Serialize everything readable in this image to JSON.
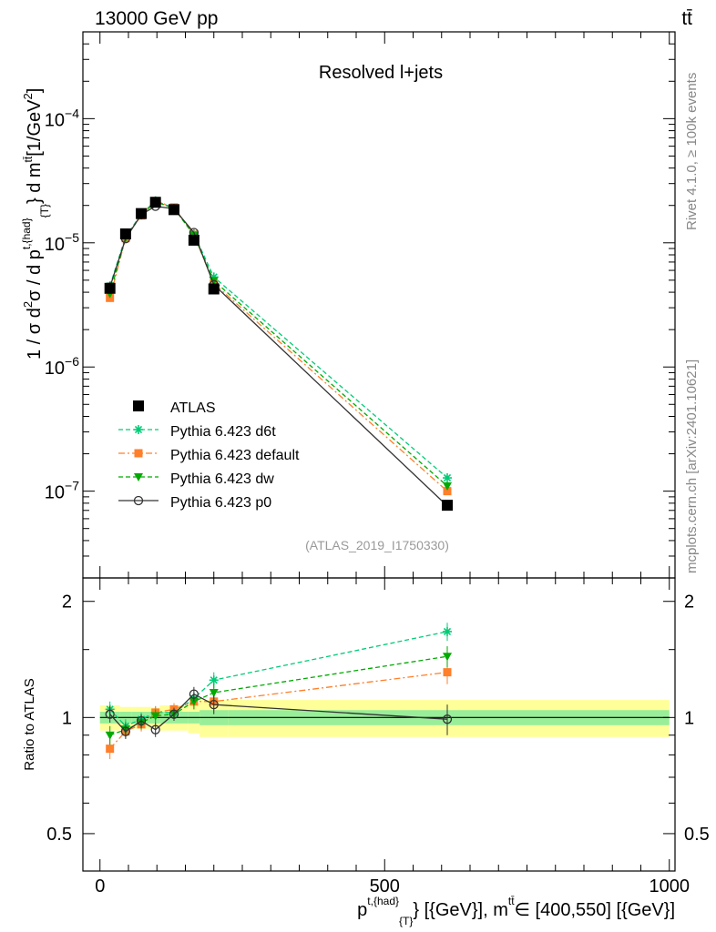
{
  "header": {
    "energy_label": "13000 GeV pp",
    "process_label": "tt̄"
  },
  "side_labels": {
    "rivet": "Rivet 4.1.0, ≥ 100k events",
    "source": "mcplots.cern.ch [arXiv:2401.10621]"
  },
  "chart_data": {
    "type": "line",
    "title": "Resolved l+jets",
    "analysis_id": "(ATLAS_2019_I1750330)",
    "ylabel": "1 / σ d²σ / d p^{t,{had}}_{T} d m^{tt̄} [1/GeV²]",
    "ylabel_parts": {
      "prefix": "1 / σ d",
      "exp2": "2",
      "mid": "σ / d p",
      "sup_had": "t,{had}",
      "sub_T": "{T}",
      "suffix": "} d m",
      "sup_tt": "tt̄",
      "unit_pre": "[1/GeV",
      "unit_exp": "2",
      "unit_post": "]"
    },
    "xlabel": "p^{t,{had}}_{T} [{GeV}], m^{tt̄} ∈ [400,550] [{GeV}]",
    "xlabel_parts": {
      "p": "p",
      "sup_had": "t,{had}",
      "sub_T": "{T}",
      "after": "} [{GeV}], m",
      "sup_tt": "tt̄",
      "range": "∈ [400,550] [{GeV}]"
    },
    "ratio_ylabel": "Ratio to ATLAS",
    "xlim": [
      -30,
      1010
    ],
    "ylim": [
      2e-08,
      0.0005
    ],
    "ratio_ylim": [
      0.4,
      2.3
    ],
    "x_ticks": [
      "0",
      "500",
      "1000"
    ],
    "y_ticks": [
      "10^{-7}",
      "10^{-6}",
      "10^{-5}",
      "10^{-4}"
    ],
    "ratio_ticks": [
      "0.5",
      "1",
      "2"
    ],
    "x": [
      17.5,
      45,
      72.5,
      97.5,
      130,
      165,
      200,
      610
    ],
    "bin_edges": [
      0,
      35,
      55,
      90,
      105,
      155,
      175,
      225,
      1000
    ],
    "series": [
      {
        "name": "ATLAS",
        "color": "#000000",
        "style": "data",
        "values": [
          4.3e-06,
          1.18e-05,
          1.72e-05,
          2.12e-05,
          1.85e-05,
          1.05e-05,
          4.25e-06,
          7.7e-08
        ],
        "errors": [
          3.5e-07,
          6e-07,
          8e-07,
          9e-07,
          8.5e-07,
          5e-07,
          2.5e-07,
          6.5e-09
        ]
      },
      {
        "name": "Pythia 6.423 d6t",
        "color": "#00cc77",
        "style": "dashed",
        "marker": "star",
        "values": [
          4.5e-06,
          1.12e-05,
          1.7e-05,
          2.18e-05,
          1.9e-05,
          1.18e-05,
          5.3e-06,
          1.28e-07
        ]
      },
      {
        "name": "Pythia 6.423 default",
        "color": "#ff7f2a",
        "style": "dashdot",
        "marker": "square",
        "values": [
          3.6e-06,
          1.09e-05,
          1.66e-05,
          2.17e-05,
          1.93e-05,
          1.16e-05,
          4.7e-06,
          1e-07
        ]
      },
      {
        "name": "Pythia 6.423 dw",
        "color": "#00aa00",
        "style": "dashed",
        "marker": "triangle",
        "values": [
          3.9e-06,
          1.1e-05,
          1.67e-05,
          2.14e-05,
          1.9e-05,
          1.15e-05,
          4.95e-06,
          1.1e-07
        ]
      },
      {
        "name": "Pythia 6.423 p0",
        "color": "#333333",
        "style": "solid",
        "marker": "circle",
        "values": [
          4.4e-06,
          1.08e-05,
          1.69e-05,
          1.97e-05,
          1.88e-05,
          1.21e-05,
          4.6e-06,
          7.6e-08
        ]
      }
    ],
    "ratio": {
      "band_inner": [
        0.035,
        0.035,
        0.035,
        0.035,
        0.035,
        0.035,
        0.045,
        0.045
      ],
      "band_outer": [
        0.075,
        0.065,
        0.065,
        0.06,
        0.075,
        0.09,
        0.11,
        0.11
      ],
      "series": [
        {
          "name": "Pythia 6.423 d6t",
          "values": [
            1.05,
            0.95,
            0.99,
            1.03,
            1.03,
            1.12,
            1.25,
            1.67
          ]
        },
        {
          "name": "Pythia 6.423 default",
          "values": [
            0.83,
            0.92,
            0.96,
            1.03,
            1.05,
            1.1,
            1.1,
            1.31
          ]
        },
        {
          "name": "Pythia 6.423 dw",
          "values": [
            0.9,
            0.93,
            0.97,
            1.01,
            1.02,
            1.1,
            1.16,
            1.44
          ]
        },
        {
          "name": "Pythia 6.423 p0",
          "values": [
            1.02,
            0.92,
            0.98,
            0.93,
            1.02,
            1.15,
            1.08,
            0.99
          ]
        }
      ],
      "errors": [
        0.05,
        0.04,
        0.04,
        0.04,
        0.04,
        0.05,
        0.06,
        0.09
      ]
    }
  }
}
